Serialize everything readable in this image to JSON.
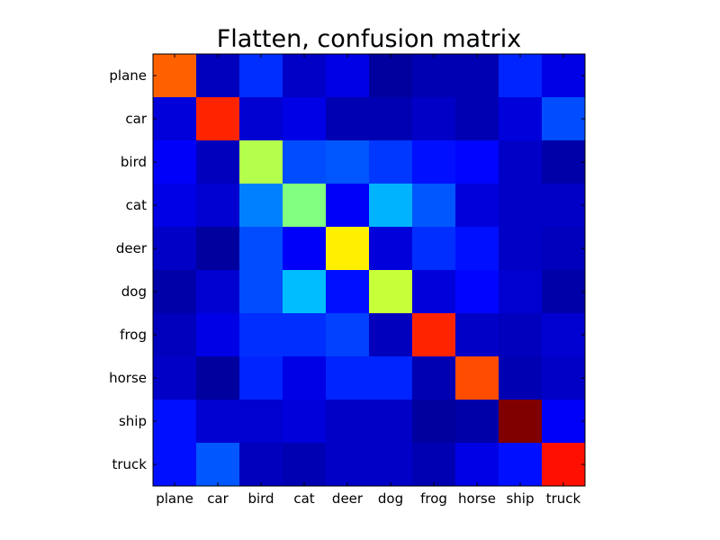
{
  "chart_data": {
    "type": "heatmap",
    "title": "Flatten, confusion matrix",
    "row_labels": [
      "plane",
      "car",
      "bird",
      "cat",
      "deer",
      "dog",
      "frog",
      "horse",
      "ship",
      "truck"
    ],
    "col_labels": [
      "plane",
      "car",
      "bird",
      "cat",
      "deer",
      "dog",
      "frog",
      "horse",
      "ship",
      "truck"
    ],
    "colormap": "jet",
    "grid": false,
    "values": [
      [
        0.78,
        0.06,
        0.17,
        0.07,
        0.1,
        0.03,
        0.05,
        0.05,
        0.16,
        0.1
      ],
      [
        0.09,
        0.84,
        0.08,
        0.1,
        0.05,
        0.05,
        0.07,
        0.05,
        0.09,
        0.2
      ],
      [
        0.12,
        0.06,
        0.55,
        0.2,
        0.21,
        0.18,
        0.14,
        0.13,
        0.07,
        0.04
      ],
      [
        0.1,
        0.08,
        0.25,
        0.5,
        0.12,
        0.3,
        0.21,
        0.09,
        0.07,
        0.07
      ],
      [
        0.07,
        0.03,
        0.2,
        0.12,
        0.64,
        0.09,
        0.17,
        0.14,
        0.07,
        0.06
      ],
      [
        0.04,
        0.08,
        0.2,
        0.31,
        0.14,
        0.57,
        0.09,
        0.13,
        0.08,
        0.04
      ],
      [
        0.06,
        0.1,
        0.17,
        0.17,
        0.19,
        0.06,
        0.84,
        0.07,
        0.06,
        0.08
      ],
      [
        0.07,
        0.03,
        0.16,
        0.1,
        0.16,
        0.16,
        0.05,
        0.8,
        0.05,
        0.07
      ],
      [
        0.14,
        0.08,
        0.08,
        0.09,
        0.07,
        0.07,
        0.03,
        0.04,
        1.0,
        0.12
      ],
      [
        0.14,
        0.21,
        0.06,
        0.05,
        0.07,
        0.07,
        0.05,
        0.1,
        0.14,
        0.86
      ]
    ]
  }
}
